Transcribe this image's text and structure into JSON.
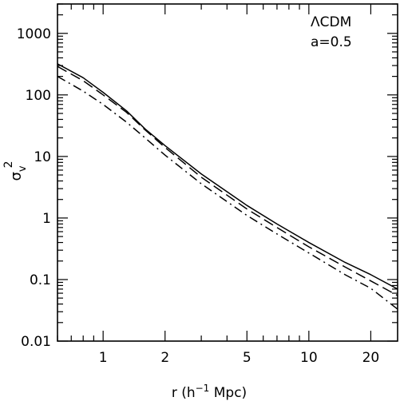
{
  "chart_data": {
    "type": "line",
    "xscale": "log",
    "yscale": "log",
    "xlim": [
      0.6,
      27
    ],
    "ylim": [
      0.01,
      3000
    ],
    "xlabel": "r (h^-1 Mpc)",
    "ylabel": "σ_v^2",
    "x_ticks": [
      1,
      2,
      5,
      10,
      20
    ],
    "x_tick_labels": [
      "1",
      "2",
      "5",
      "10",
      "20"
    ],
    "y_ticks": [
      0.01,
      0.1,
      1,
      10,
      100,
      1000
    ],
    "y_tick_labels": [
      "0.01",
      "0.1",
      "1",
      "10",
      "100",
      "1000"
    ],
    "annotation": [
      "ΛCDM",
      "a=0.5"
    ],
    "grid": false,
    "legend": "none",
    "series": [
      {
        "style": "solid",
        "x": [
          0.6,
          0.8,
          1,
          1.3,
          1.6,
          2,
          3,
          5,
          7,
          10,
          15,
          20,
          27
        ],
        "y": [
          320,
          190,
          110,
          55,
          28,
          15,
          5.2,
          1.6,
          0.8,
          0.4,
          0.19,
          0.12,
          0.07
        ]
      },
      {
        "style": "dashed",
        "x": [
          0.6,
          0.8,
          1,
          1.3,
          1.6,
          2,
          3,
          5,
          7,
          10,
          15,
          20,
          27
        ],
        "y": [
          290,
          170,
          100,
          52,
          27,
          14,
          4.6,
          1.4,
          0.7,
          0.34,
          0.16,
          0.095,
          0.055
        ]
      },
      {
        "style": "dash-dot",
        "x": [
          0.6,
          0.8,
          1,
          1.3,
          1.6,
          2,
          3,
          5,
          7,
          10,
          15,
          20,
          27
        ],
        "y": [
          200,
          115,
          70,
          36,
          20,
          10.5,
          3.6,
          1.1,
          0.55,
          0.27,
          0.12,
          0.072,
          0.033
        ]
      }
    ]
  }
}
